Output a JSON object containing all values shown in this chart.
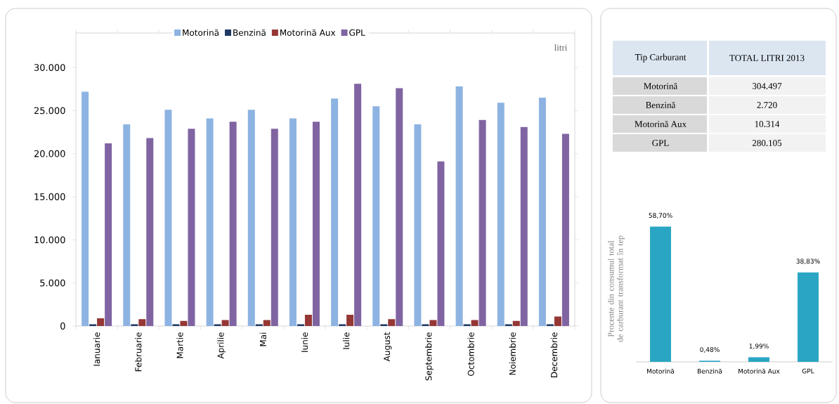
{
  "chart_data": [
    {
      "type": "bar",
      "categories": [
        "Ianuarie",
        "Februarie",
        "Martie",
        "Aprilie",
        "Mai",
        "Iunie",
        "Iulie",
        "August",
        "Septembrie",
        "Octombrie",
        "Noiembrie",
        "Decembrie"
      ],
      "series": [
        {
          "name": "Motorină",
          "color": "#8db3e2",
          "values": [
            27200,
            23400,
            25100,
            24100,
            25100,
            24100,
            26400,
            25500,
            23400,
            27800,
            25900,
            26500
          ]
        },
        {
          "name": "Benzină",
          "color": "#1f3864",
          "values": [
            200,
            200,
            200,
            200,
            200,
            200,
            200,
            200,
            200,
            200,
            200,
            200
          ]
        },
        {
          "name": "Motorină Aux",
          "color": "#953735",
          "values": [
            900,
            800,
            600,
            700,
            700,
            1300,
            1300,
            800,
            700,
            700,
            600,
            1100
          ]
        },
        {
          "name": "GPL",
          "color": "#8064a2",
          "values": [
            21200,
            21800,
            22900,
            23700,
            22900,
            23700,
            28100,
            27600,
            19100,
            23900,
            23100,
            22300
          ]
        }
      ],
      "ylim": [
        0,
        34000
      ],
      "yticks": [
        0,
        {
          "value": 5000,
          "label": "5.000"
        },
        {
          "value": 10000,
          "label": "10.000"
        },
        {
          "value": 15000,
          "label": "15.000"
        },
        {
          "value": 20000,
          "label": "20.000"
        },
        {
          "value": 25000,
          "label": "25.000"
        },
        {
          "value": 30000,
          "label": "30.000"
        }
      ],
      "annotations": [
        "litri"
      ],
      "legend": "top",
      "grid": false
    },
    {
      "type": "other",
      "xlabel": "Tip Carburant",
      "ylabel": "TOTAL LITRI 2013",
      "categories": [
        "Motorină",
        "Benzină",
        "Motorină Aux",
        "GPL"
      ],
      "annotations": [
        "304.497",
        "2.720",
        "10.314",
        "280.105"
      ]
    },
    {
      "type": "bar",
      "ylabel": "Procente din consumul total de carburant transformat în tep",
      "categories": [
        "Motorină",
        "Benzină",
        "Motorină Aux",
        "GPL"
      ],
      "values": [
        58.7,
        0.48,
        1.99,
        38.83
      ],
      "value_labels": [
        "58,70%",
        "0,48%",
        "1,99%",
        "38,83%"
      ],
      "color": "#2aa6c4"
    }
  ]
}
